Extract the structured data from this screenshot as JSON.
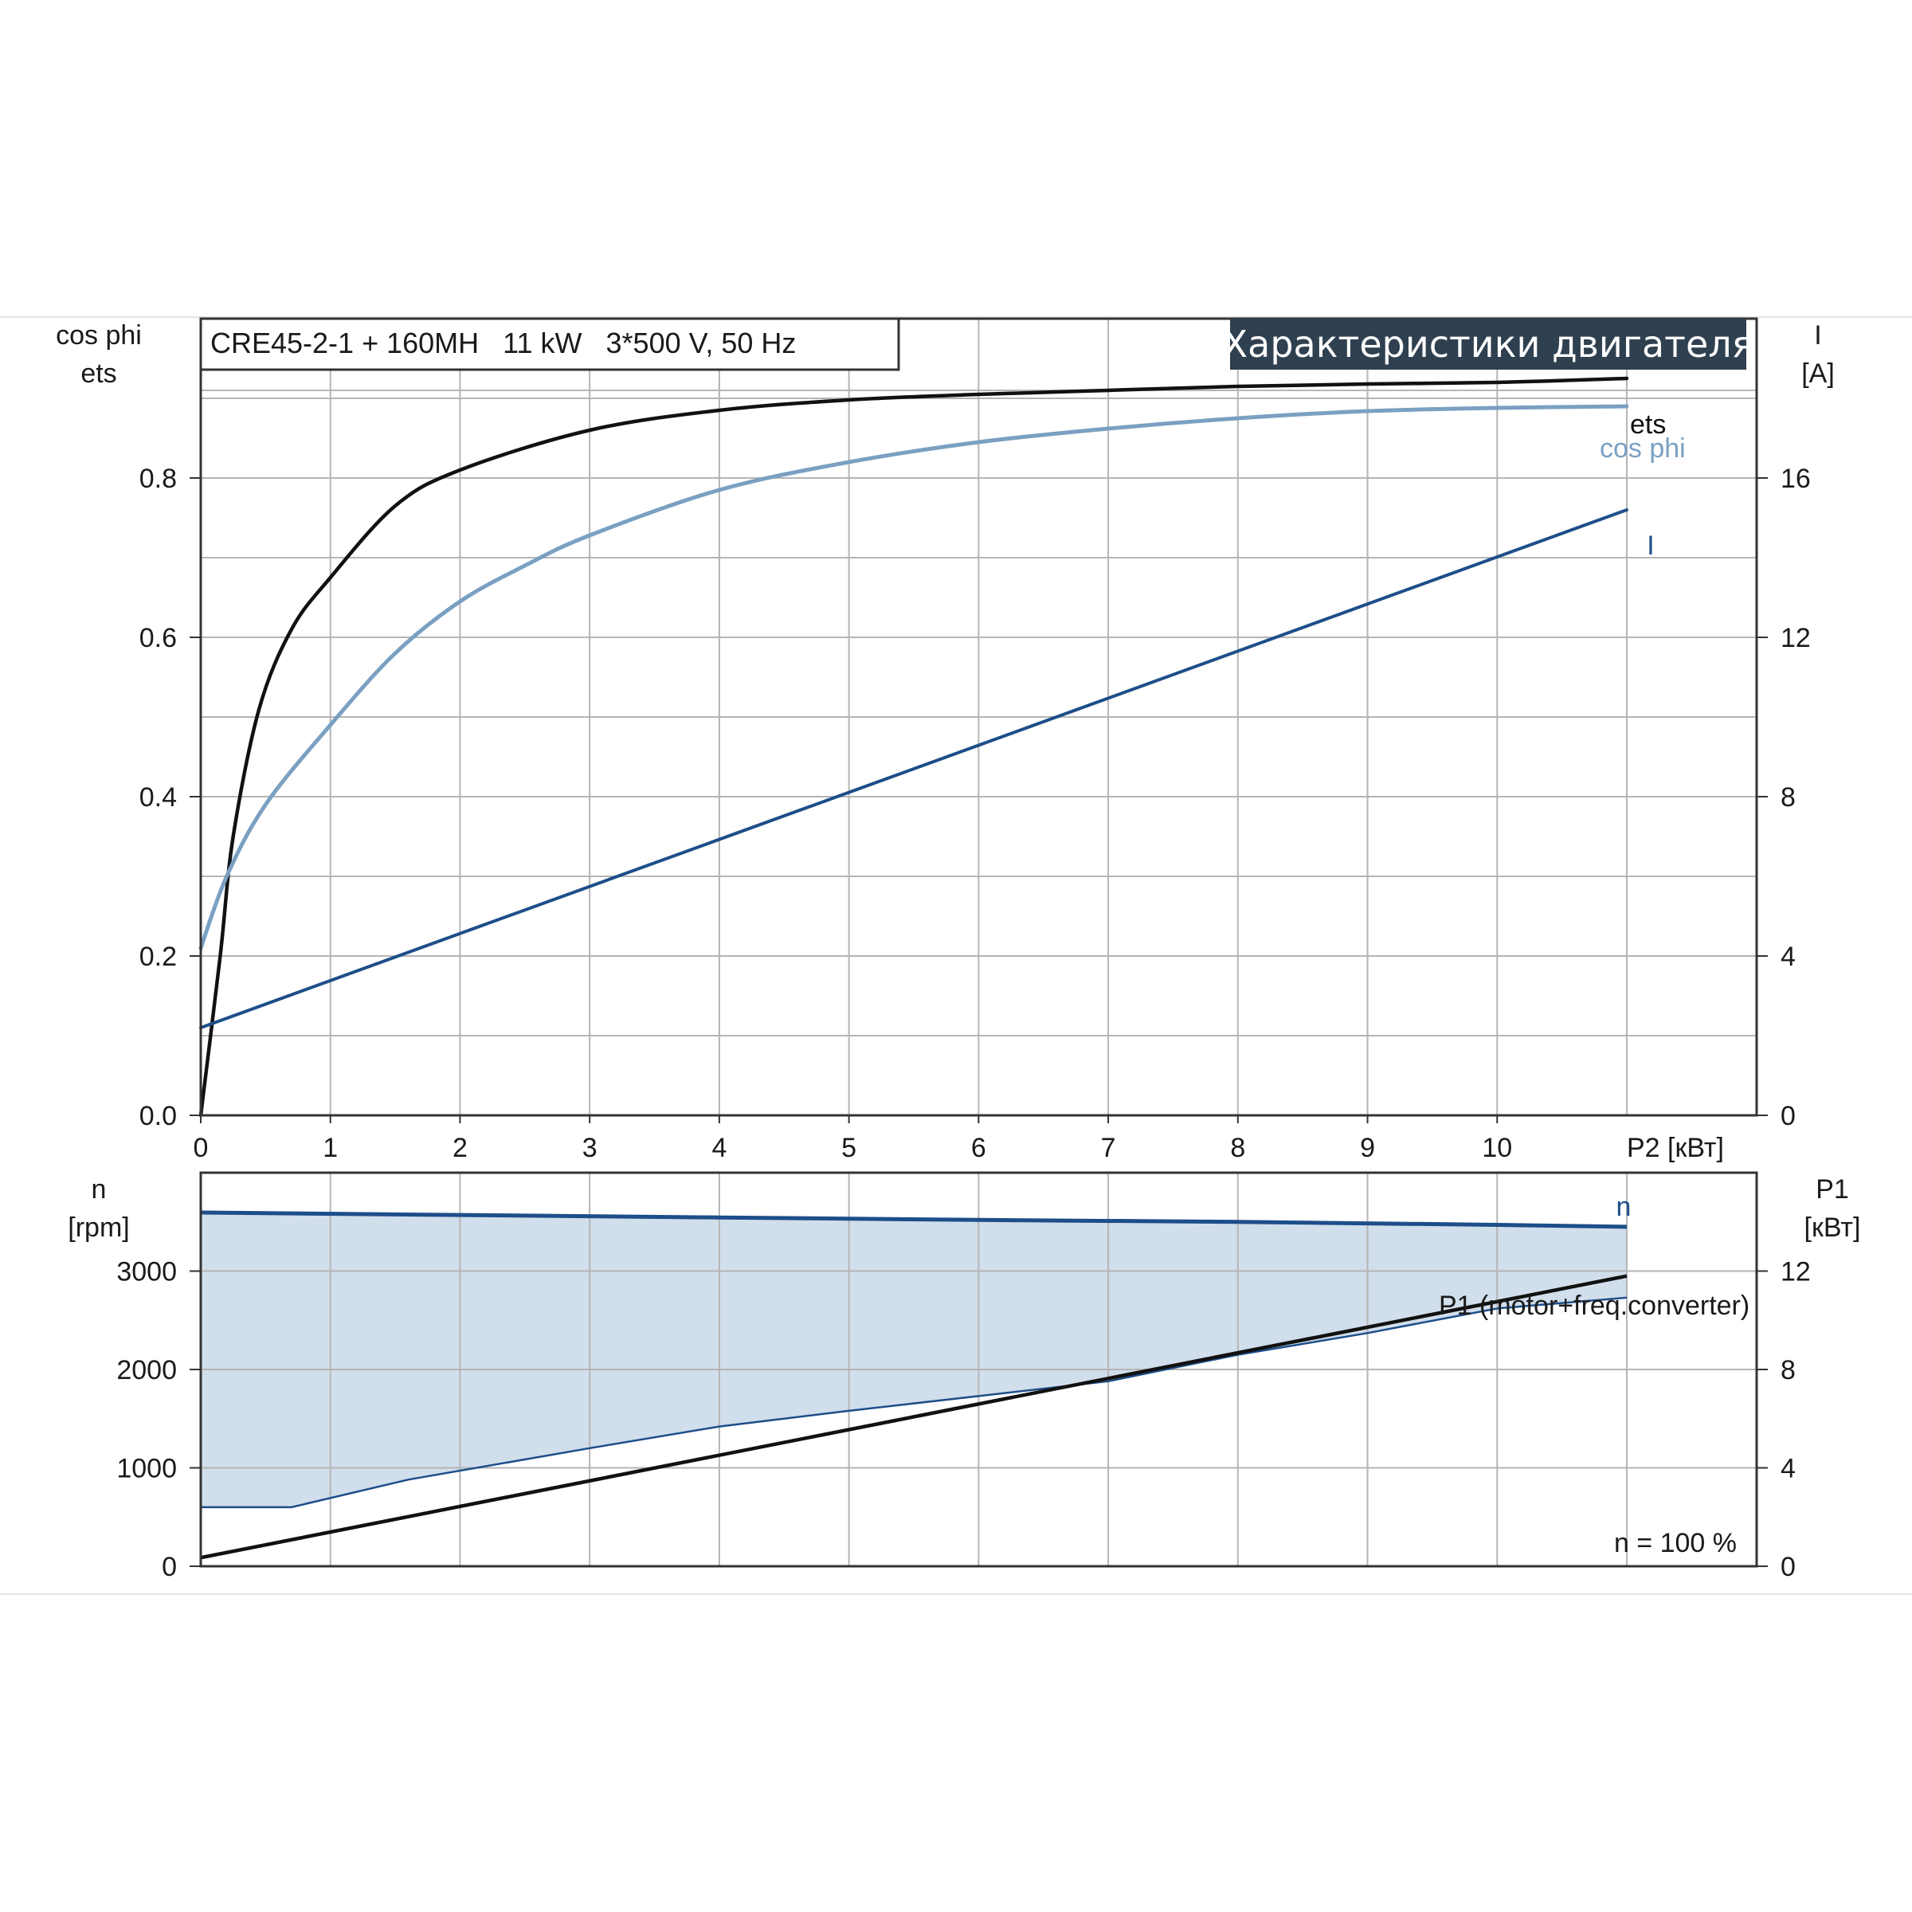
{
  "model_label": "CRE45-2-1 + 160MH   11 kW   3*500 V, 50 Hz",
  "banner_title": "Характеристики двигателя",
  "colors": {
    "eta": "#111111",
    "cos_phi": "#7aa0c2",
    "current": "#1d4e89",
    "speed": "#1d4e89",
    "speed_fill": "#d1deeb",
    "p1": "#111111",
    "banner_bg": "#2f4050",
    "grid": "#b5b5b5",
    "frame": "#333333"
  },
  "chart_data": [
    {
      "type": "line",
      "title": "Характеристики двигателя",
      "xlabel": "P2 [кВт]",
      "xlim": [
        0,
        12
      ],
      "x_ticks": [
        0,
        1,
        2,
        3,
        4,
        5,
        6,
        7,
        8,
        9,
        10
      ],
      "y_left": {
        "label_line1": "cos phi",
        "label_line2": "ets",
        "lim": [
          0,
          1.0
        ],
        "ticks": [
          0.0,
          0.2,
          0.4,
          0.6,
          0.8
        ],
        "tick_labels": [
          "0.0",
          "0.2",
          "0.4",
          "0.6",
          "0.8"
        ]
      },
      "y_right": {
        "label_line1": "I",
        "label_line2": "[A]",
        "lim": [
          0,
          20
        ],
        "ticks": [
          0,
          4,
          8,
          12,
          16
        ],
        "tick_labels": [
          "0",
          "4",
          "8",
          "12",
          "16"
        ]
      },
      "grid": true,
      "series": [
        {
          "name": "ets",
          "axis": "left",
          "x": [
            0,
            0.15,
            0.25,
            0.45,
            0.7,
            1.0,
            1.5,
            2.0,
            3.0,
            4.0,
            5.0,
            6.0,
            7.0,
            8.0,
            9.0,
            10.0,
            11.0
          ],
          "y": [
            0.0,
            0.2,
            0.35,
            0.51,
            0.61,
            0.675,
            0.765,
            0.81,
            0.86,
            0.885,
            0.898,
            0.905,
            0.91,
            0.915,
            0.918,
            0.92,
            0.925
          ]
        },
        {
          "name": "cos phi",
          "axis": "left",
          "x": [
            0,
            0.2,
            0.5,
            1.0,
            1.5,
            2.0,
            2.5,
            3.0,
            4.0,
            5.0,
            6.0,
            7.0,
            8.0,
            9.0,
            10.0,
            11.0
          ],
          "y": [
            0.21,
            0.3,
            0.39,
            0.49,
            0.58,
            0.645,
            0.69,
            0.728,
            0.785,
            0.82,
            0.845,
            0.862,
            0.875,
            0.884,
            0.888,
            0.89
          ]
        },
        {
          "name": "I",
          "axis": "right",
          "x": [
            0,
            11
          ],
          "y": [
            2.2,
            15.2
          ]
        }
      ]
    },
    {
      "type": "area",
      "xlim": [
        0,
        12
      ],
      "y_left": {
        "label_line1": "n",
        "label_line2": "[rpm]",
        "lim": [
          0,
          4000
        ],
        "ticks": [
          0,
          1000,
          2000,
          3000
        ],
        "tick_labels": [
          "0",
          "1000",
          "2000",
          "3000"
        ]
      },
      "y_right": {
        "label_line1": "P1",
        "label_line2": "[кВт]",
        "lim": [
          0,
          16
        ],
        "ticks": [
          0,
          4,
          8,
          12
        ],
        "tick_labels": [
          "0",
          "4",
          "8",
          "12"
        ]
      },
      "grid": true,
      "annotation": "n = 100 %",
      "series": [
        {
          "name": "n",
          "axis": "left",
          "x": [
            0,
            2,
            4,
            6,
            8,
            10,
            11
          ],
          "y": [
            3595,
            3570,
            3545,
            3520,
            3500,
            3470,
            3450
          ]
        },
        {
          "name": "n range (lower bound)",
          "axis": "left",
          "x": [
            0,
            0.7,
            1.6,
            3,
            4,
            5,
            6,
            7,
            8,
            9,
            10,
            11
          ],
          "y": [
            600,
            600,
            880,
            1200,
            1420,
            1580,
            1730,
            1880,
            2150,
            2370,
            2620,
            2730
          ]
        },
        {
          "name": "P1 (motor+freq.converter)",
          "axis": "right",
          "x": [
            0,
            11
          ],
          "y": [
            0.35,
            11.8
          ]
        }
      ]
    }
  ]
}
